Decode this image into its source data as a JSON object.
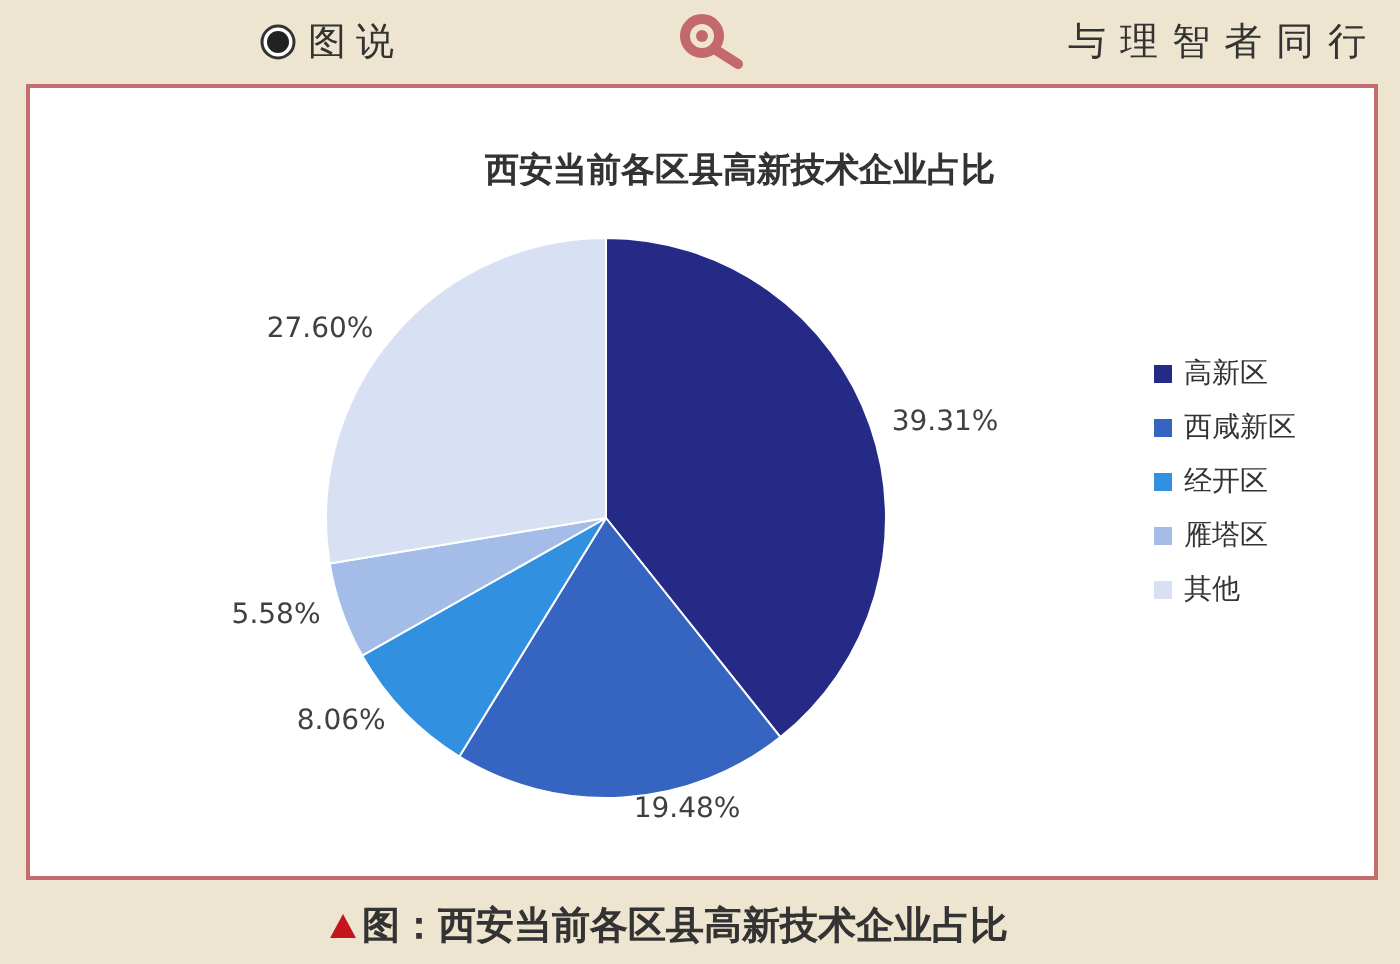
{
  "chart_data": {
    "type": "pie",
    "title": "西安当前各区县高新技术企业占比",
    "categories": [
      "高新区",
      "西咸新区",
      "经开区",
      "雁塔区",
      "其他"
    ],
    "values": [
      39.31,
      19.48,
      8.06,
      5.58,
      27.6
    ],
    "value_labels": [
      "39.31%",
      "19.48%",
      "8.06%",
      "5.58%",
      "27.60%"
    ],
    "colors": [
      "#252a87",
      "#3565c0",
      "#3290e0",
      "#a3bce8",
      "#d8e0f3"
    ],
    "legend": "right",
    "annotations": [
      "图说",
      "与理智者同行",
      "图：西安当前各区县高新技术企业占比"
    ]
  }
}
